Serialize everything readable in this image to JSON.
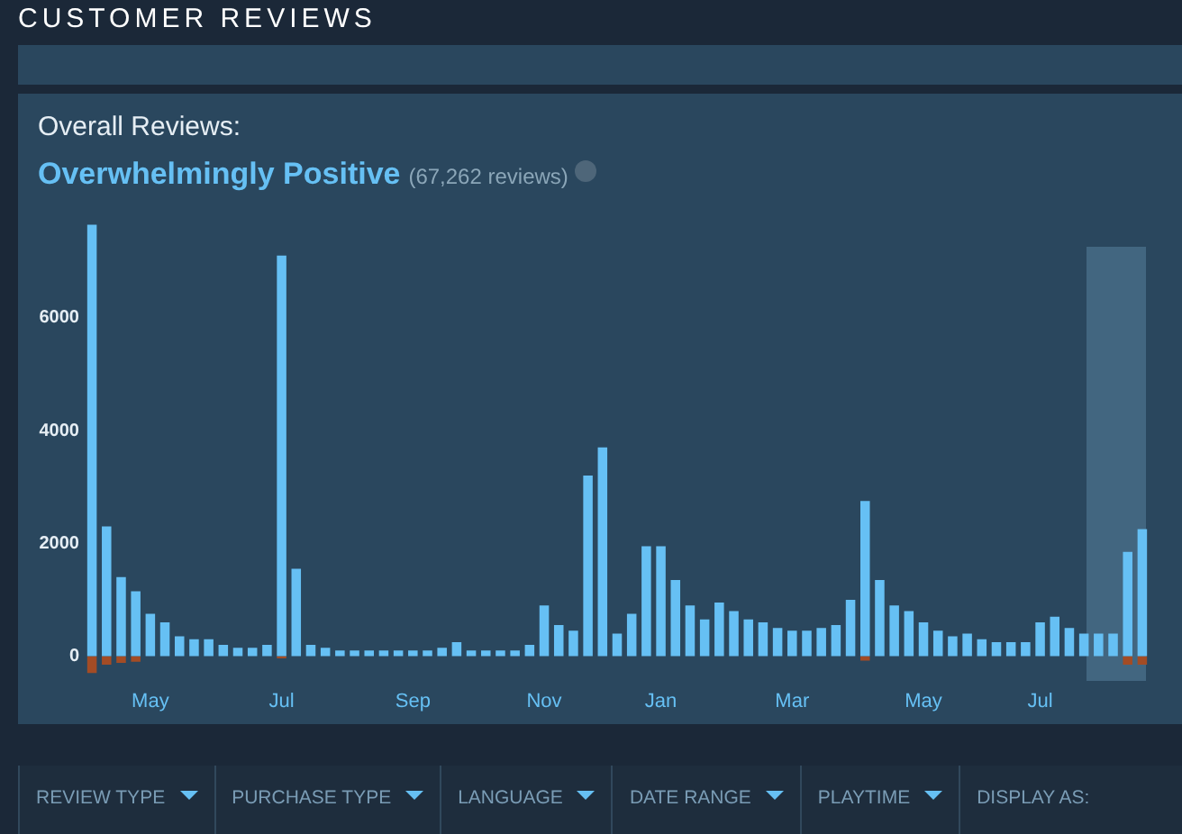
{
  "chart_data": {
    "type": "bar",
    "title": "CUSTOMER REVIEWS",
    "subtitle": "Overall Reviews:",
    "annotations": [
      "Overwhelmingly Positive",
      "(67,262 reviews)",
      "REVIEW TYPE",
      "PURCHASE TYPE",
      "LANGUAGE",
      "DATE RANGE",
      "PLAYTIME",
      "DISPLAY AS:"
    ],
    "categories": [
      null,
      null,
      null,
      null,
      "May",
      null,
      null,
      null,
      null,
      null,
      null,
      null,
      null,
      "Jul",
      null,
      null,
      null,
      null,
      null,
      null,
      null,
      null,
      "Sep",
      null,
      null,
      null,
      null,
      null,
      null,
      null,
      null,
      "Nov",
      null,
      null,
      null,
      null,
      null,
      null,
      null,
      "Jan",
      null,
      null,
      null,
      null,
      null,
      null,
      null,
      null,
      "Mar",
      null,
      null,
      null,
      null,
      null,
      null,
      null,
      null,
      "May",
      null,
      null,
      null,
      null,
      null,
      null,
      null,
      "Jul",
      null,
      null,
      null,
      null,
      null,
      null,
      null
    ],
    "stacked": true,
    "series": [
      {
        "color": "#66c0f4",
        "values": [
          7650,
          2300,
          1400,
          1150,
          750,
          600,
          350,
          300,
          300,
          200,
          150,
          150,
          200,
          7100,
          1550,
          200,
          150,
          100,
          100,
          100,
          100,
          100,
          100,
          100,
          150,
          250,
          100,
          100,
          100,
          100,
          200,
          900,
          550,
          450,
          3200,
          3700,
          400,
          750,
          1950,
          1950,
          1350,
          900,
          650,
          950,
          800,
          650,
          600,
          500,
          450,
          450,
          500,
          550,
          1000,
          2750,
          1350,
          900,
          800,
          600,
          450,
          350,
          400,
          300,
          250,
          250,
          250,
          600,
          700,
          500,
          400,
          400,
          400,
          1850,
          2250
        ]
      },
      {
        "color": "#a34c25",
        "values": [
          -300,
          -150,
          -120,
          -100,
          null,
          null,
          null,
          null,
          null,
          null,
          null,
          null,
          null,
          -40,
          null,
          null,
          null,
          null,
          null,
          null,
          null,
          null,
          null,
          null,
          null,
          null,
          null,
          null,
          null,
          null,
          null,
          null,
          null,
          null,
          null,
          null,
          null,
          null,
          null,
          null,
          null,
          null,
          null,
          null,
          null,
          null,
          null,
          null,
          null,
          null,
          null,
          null,
          null,
          -80,
          null,
          null,
          null,
          null,
          null,
          null,
          null,
          null,
          null,
          null,
          null,
          null,
          null,
          null,
          null,
          null,
          null,
          -150,
          -150
        ]
      }
    ],
    "ylim": [
      -400,
      7800
    ],
    "yticks": [
      0,
      2000,
      4000,
      6000
    ],
    "grid": false,
    "legend": false
  }
}
